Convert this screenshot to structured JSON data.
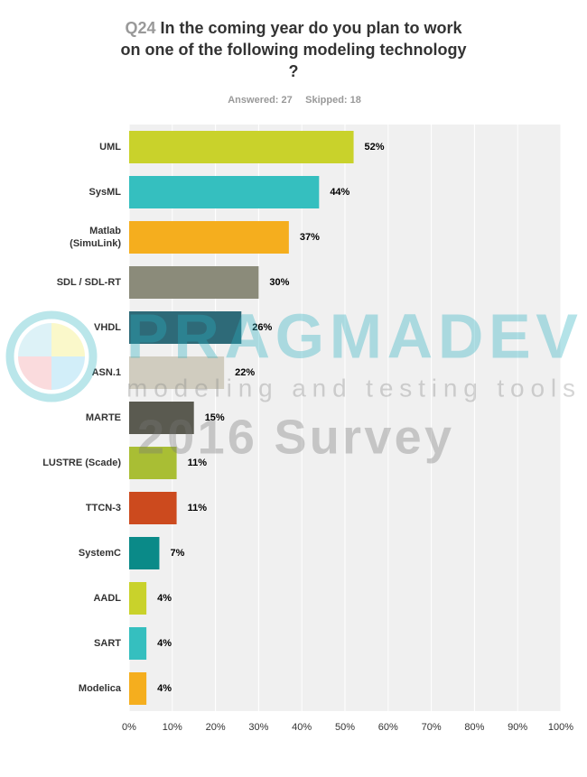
{
  "chart_data": {
    "type": "barh",
    "question_number": "Q24",
    "title": [
      "In the coming year do you plan to work",
      "on one of the following modeling technology",
      "?"
    ],
    "answered": "Answered: 27",
    "skipped": "Skipped: 18",
    "watermark": [
      "PRAGMADEV",
      "modeling and testing tools",
      "2016 Survey"
    ],
    "categories": [
      "UML",
      "SysML",
      "Matlab (SimuLink)",
      "SDL / SDL-RT",
      "VHDL",
      "ASN.1",
      "MARTE",
      "LUSTRE (Scade)",
      "TTCN-3",
      "SystemC",
      "AADL",
      "SART",
      "Modelica"
    ],
    "values": [
      52,
      44,
      37,
      30,
      26,
      22,
      15,
      11,
      11,
      7,
      4,
      4,
      4
    ],
    "value_labels": [
      "52%",
      "44%",
      "37%",
      "30%",
      "26%",
      "22%",
      "15%",
      "11%",
      "11%",
      "7%",
      "4%",
      "4%",
      "4%"
    ],
    "colors": [
      "#c9d22b",
      "#35bfbf",
      "#f5ae1e",
      "#8b8b7a",
      "#2e6a78",
      "#d0ccbf",
      "#5a5a50",
      "#a9be34",
      "#cc4a1e",
      "#0a8a88",
      "#c9d22b",
      "#35bfbf",
      "#f5ae1e"
    ],
    "xlim": [
      0,
      100
    ],
    "xticks": [
      {
        "value": 0,
        "label": "0%"
      },
      {
        "value": 10,
        "label": "10%"
      },
      {
        "value": 20,
        "label": "20%"
      },
      {
        "value": 30,
        "label": "30%"
      },
      {
        "value": 40,
        "label": "40%"
      },
      {
        "value": 50,
        "label": "50%"
      },
      {
        "value": 60,
        "label": "60%"
      },
      {
        "value": 70,
        "label": "70%"
      },
      {
        "value": 80,
        "label": "80%"
      },
      {
        "value": 90,
        "label": "90%"
      },
      {
        "value": 100,
        "label": "100%"
      }
    ],
    "grid": true
  }
}
